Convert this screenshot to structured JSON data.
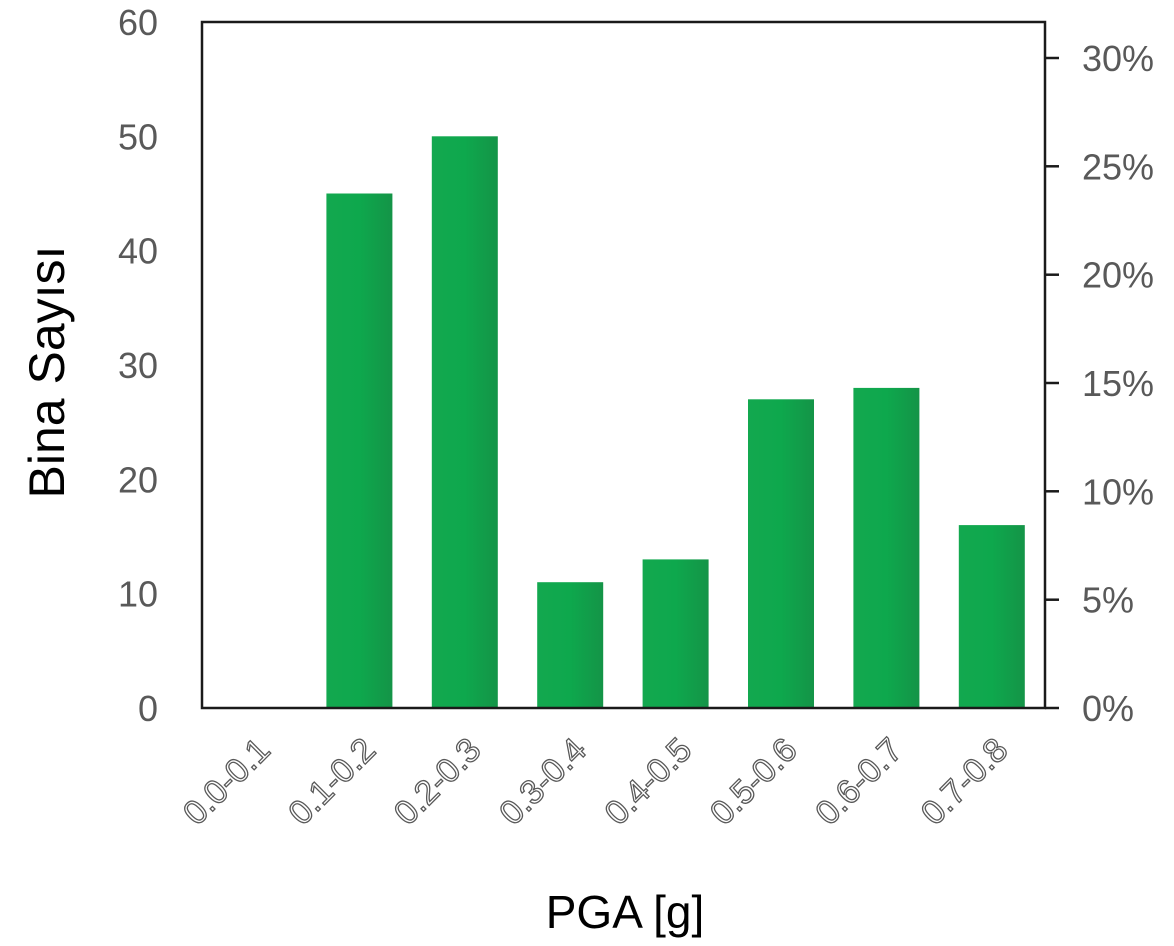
{
  "chart_data": {
    "type": "bar",
    "categories": [
      "0.0-0.1",
      "0.1-0.2",
      "0.2-0.3",
      "0.3-0.4",
      "0.4-0.5",
      "0.5-0.6",
      "0.6-0.7",
      "0.7-0.8"
    ],
    "values": [
      0,
      45,
      50,
      11,
      13,
      27,
      28,
      16
    ],
    "xlabel": "PGA [g]",
    "ylabel": "Bina Sayısı",
    "ylim": [
      0,
      60
    ],
    "yticks": [
      "0",
      "10",
      "20",
      "30",
      "40",
      "50",
      "60"
    ],
    "y2lim": [
      0,
      0.3
    ],
    "y2ticks": [
      "0%",
      "5%",
      "10%",
      "15%",
      "20%",
      "25%",
      "30%"
    ],
    "grid": false,
    "bar_color": "#0fa24c"
  }
}
